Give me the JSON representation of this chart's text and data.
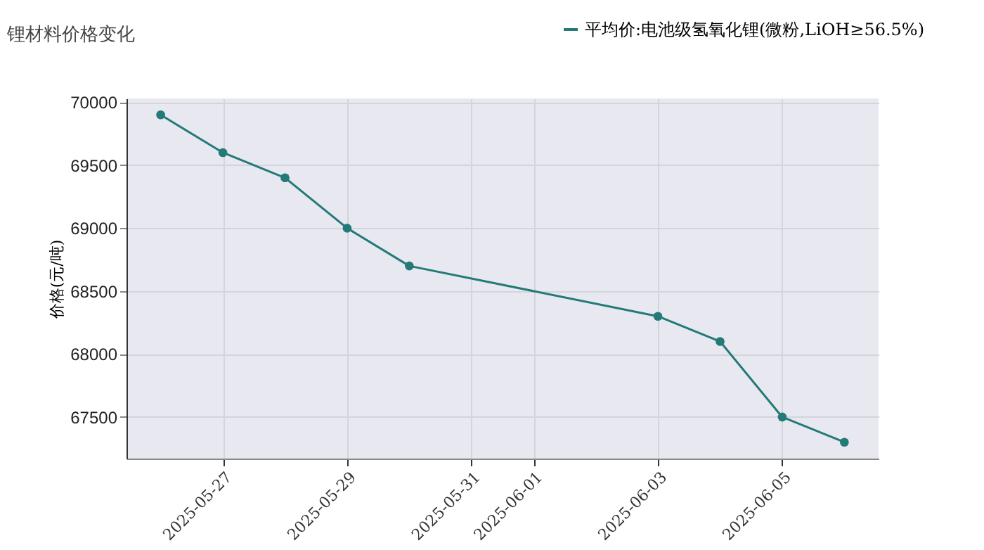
{
  "chart_data": {
    "type": "line",
    "title": "锂材料价格变化",
    "ylabel": "价格(元/吨)",
    "x": [
      "2025-05-26",
      "2025-05-27",
      "2025-05-28",
      "2025-05-29",
      "2025-05-30",
      "2025-06-03",
      "2025-06-04",
      "2025-06-05",
      "2025-06-06"
    ],
    "series": [
      {
        "name": "平均价:电池级氢氧化锂(微粉,LiOH≥56.5%)",
        "color": "#237a78",
        "values": [
          69900,
          69600,
          69400,
          69000,
          68700,
          68300,
          68100,
          67500,
          67300
        ]
      }
    ],
    "xlim": [
      "2025-05-25T10:48",
      "2025-06-06T13:12"
    ],
    "xticks": [
      "2025-05-27",
      "2025-05-29",
      "2025-05-31",
      "2025-06-01",
      "2025-06-03",
      "2025-06-05"
    ],
    "ylim": [
      67170,
      70030
    ],
    "yticks": [
      67500,
      68000,
      68500,
      69000,
      69500,
      70000
    ],
    "grid": true,
    "legend": "top right",
    "marker": "circle",
    "line_style": "solid"
  }
}
